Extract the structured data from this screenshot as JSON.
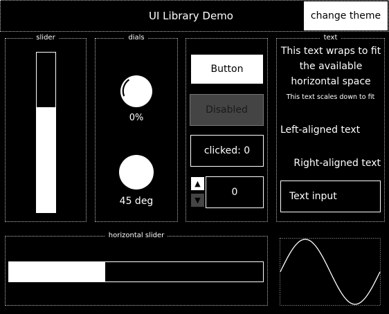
{
  "header": {
    "title": "UI Library Demo",
    "theme_button": "change theme"
  },
  "groups": {
    "slider": "slider",
    "dials": "dials",
    "text": "text",
    "hslider": "horizontal slider"
  },
  "vslider": {
    "value": 0.66
  },
  "dials": [
    {
      "readout": "0%",
      "value": 0.0
    },
    {
      "readout": "45 deg",
      "value": 45
    }
  ],
  "buttons": {
    "button_label": "Button",
    "disabled_label": "Disabled",
    "clicked_label": "clicked: 0"
  },
  "stepper": {
    "value": "0",
    "up_glyph": "▲",
    "down_glyph": "▼"
  },
  "text": {
    "wrap": "This text wraps to fit the available horizontal space",
    "scale": "This text scales down to fit",
    "left": "Left-aligned text",
    "right": "Right-aligned text",
    "input_value": "Text input"
  },
  "hslider": {
    "value": 0.38
  },
  "colors": {
    "background": "#000000",
    "foreground": "#ffffff",
    "disabled_bg": "#444444",
    "disabled_fg": "#1a1a1a"
  }
}
